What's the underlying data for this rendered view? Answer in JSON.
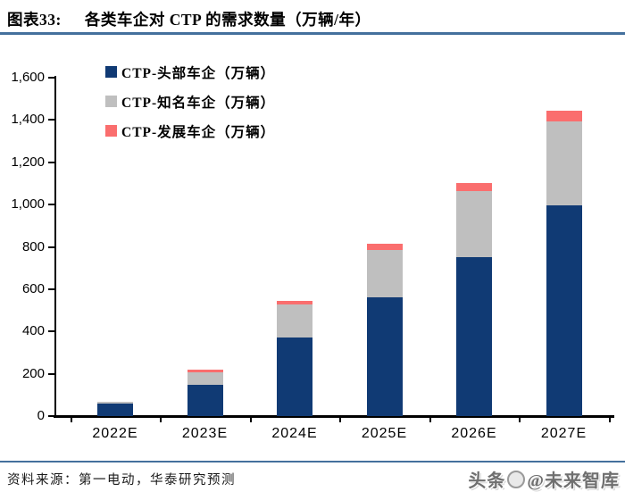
{
  "header": {
    "label": "图表33:",
    "title": "各类车企对 CTP 的需求数量（万辆/年）"
  },
  "chart_data": {
    "type": "bar",
    "stacked": true,
    "title": "各类车企对 CTP 的需求数量（万辆/年）",
    "categories": [
      "2022E",
      "2023E",
      "2024E",
      "2025E",
      "2026E",
      "2027E"
    ],
    "series": [
      {
        "name": "CTP-头部车企（万辆）",
        "color": "#103a74",
        "values": [
          60,
          148,
          370,
          560,
          750,
          995
        ]
      },
      {
        "name": "CTP-知名车企（万辆）",
        "color": "#bfbfbf",
        "values": [
          8,
          60,
          158,
          225,
          312,
          400
        ]
      },
      {
        "name": "CTP-发展车企（万辆）",
        "color": "#fa6e6e",
        "values": [
          0,
          10,
          15,
          28,
          38,
          50
        ]
      }
    ],
    "totals": [
      68,
      218,
      543,
      813,
      1100,
      1445
    ],
    "ylim": [
      0,
      1600
    ],
    "ytick_step": 200,
    "ytick_labels": [
      "0",
      "200",
      "400",
      "600",
      "800",
      "1,000",
      "1,200",
      "1,400",
      "1,600"
    ],
    "legend_position": "top-left",
    "grid": false
  },
  "footer": {
    "source": "资料来源：第一电动，华泰研究预测",
    "watermark_prefix": "头条",
    "watermark_logo": "circle-logo",
    "watermark_suffix": "@未来智库"
  },
  "colors": {
    "accent_rule": "#44709d",
    "axis": "#000000",
    "series_head": "#103a74",
    "series_known": "#bfbfbf",
    "series_developing": "#fa6e6e"
  }
}
